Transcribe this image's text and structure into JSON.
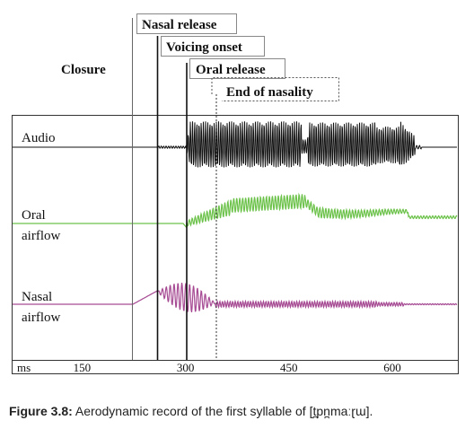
{
  "caption": {
    "label": "Figure 3.8:",
    "text": "Aerodynamic record of the first syllable of [t̪pn̪maːɽɯ]."
  },
  "chart_data": {
    "type": "line",
    "title": "",
    "xlabel": "ms",
    "ylabel": "",
    "xlim": [
      48,
      695
    ],
    "x_ticks": [
      150,
      300,
      450,
      600
    ],
    "grid": false,
    "events": [
      {
        "label": "Closure",
        "time": 195,
        "style": "thin"
      },
      {
        "label": "Nasal release",
        "time": 237,
        "style": "solid"
      },
      {
        "label": "Voicing onset",
        "time": 286,
        "style": "solid"
      },
      {
        "label": "Oral release",
        "time": 338,
        "style": "dotted-bracket"
      },
      {
        "label": "End of nasality",
        "time": 336,
        "style": "dotted"
      }
    ],
    "series": [
      {
        "name": "Audio",
        "color": "#111111",
        "segments": [
          {
            "from": 48,
            "to": 286,
            "behavior": "flat with low noise"
          },
          {
            "from": 286,
            "to": 482,
            "behavior": "large voiced oscillation"
          },
          {
            "from": 482,
            "to": 492,
            "behavior": "dip"
          },
          {
            "from": 492,
            "to": 667,
            "behavior": "large voiced oscillation"
          },
          {
            "from": 667,
            "to": 695,
            "behavior": "flat"
          }
        ]
      },
      {
        "name": "Oral airflow",
        "color": "#6cc24a",
        "segments": [
          {
            "from": 48,
            "to": 286,
            "behavior": "flat"
          },
          {
            "from": 286,
            "to": 360,
            "behavior": "rise with oscillation"
          },
          {
            "from": 360,
            "to": 482,
            "behavior": "high plateau with oscillation"
          },
          {
            "from": 482,
            "to": 540,
            "behavior": "drop"
          },
          {
            "from": 540,
            "to": 695,
            "behavior": "medium with decaying oscillation"
          }
        ]
      },
      {
        "name": "Nasal airflow",
        "color": "#a64a93",
        "segments": [
          {
            "from": 48,
            "to": 195,
            "behavior": "flat"
          },
          {
            "from": 195,
            "to": 237,
            "behavior": "rise"
          },
          {
            "from": 237,
            "to": 290,
            "behavior": "large oscillation"
          },
          {
            "from": 290,
            "to": 600,
            "behavior": "small oscillation"
          },
          {
            "from": 600,
            "to": 695,
            "behavior": "flat"
          }
        ]
      }
    ],
    "series_labels": {
      "audio": "Audio",
      "oral_1": "Oral",
      "oral_2": "airflow",
      "nasal_1": "Nasal",
      "nasal_2": "airflow"
    }
  }
}
